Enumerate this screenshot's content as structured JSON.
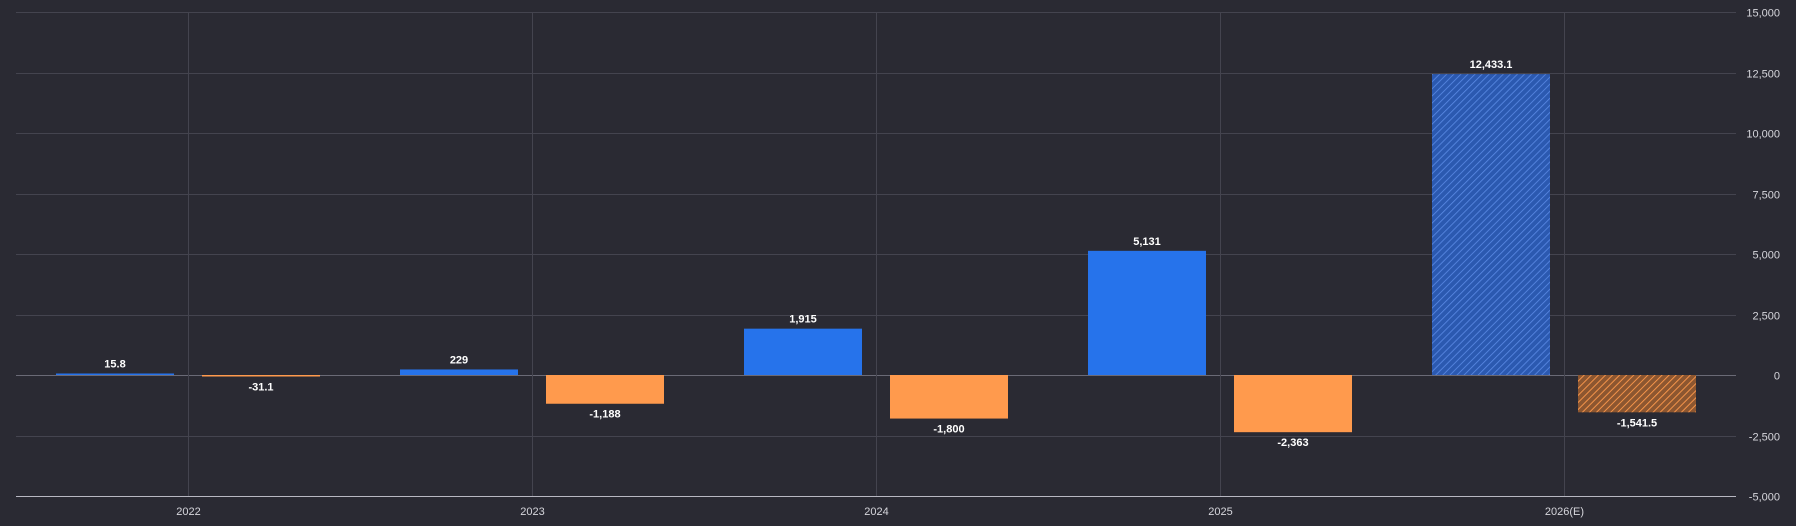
{
  "chart_data": {
    "type": "bar",
    "categories": [
      "2022",
      "2023",
      "2024",
      "2025",
      "2026(E)"
    ],
    "series": [
      {
        "color": "#2673eb",
        "values": [
          15.8,
          229,
          1915,
          5131,
          12433.1
        ],
        "labels": [
          "15.8",
          "229",
          "1,915",
          "5,131",
          "12,433.1"
        ]
      },
      {
        "color": "#ff9a4d",
        "values": [
          -31.1,
          -1188,
          -1800,
          -2363,
          -1541.5
        ],
        "labels": [
          "-31.1",
          "-1,188",
          "-1,800",
          "-2,363",
          "-1,541.5"
        ]
      }
    ],
    "estimated_category": "2026(E)",
    "ylim": [
      -5000,
      15000
    ],
    "yticks": [
      15000,
      12500,
      10000,
      7500,
      5000,
      2500,
      0,
      -2500,
      -5000
    ],
    "ytick_labels": [
      "15,000",
      "12,500",
      "10,000",
      "7,500",
      "5,000",
      "2,500",
      "0",
      "-2,500",
      "-5,000"
    ],
    "y_axis_position": "right",
    "grid": true,
    "legend": "none",
    "title": "",
    "xlabel": "",
    "ylabel": ""
  }
}
